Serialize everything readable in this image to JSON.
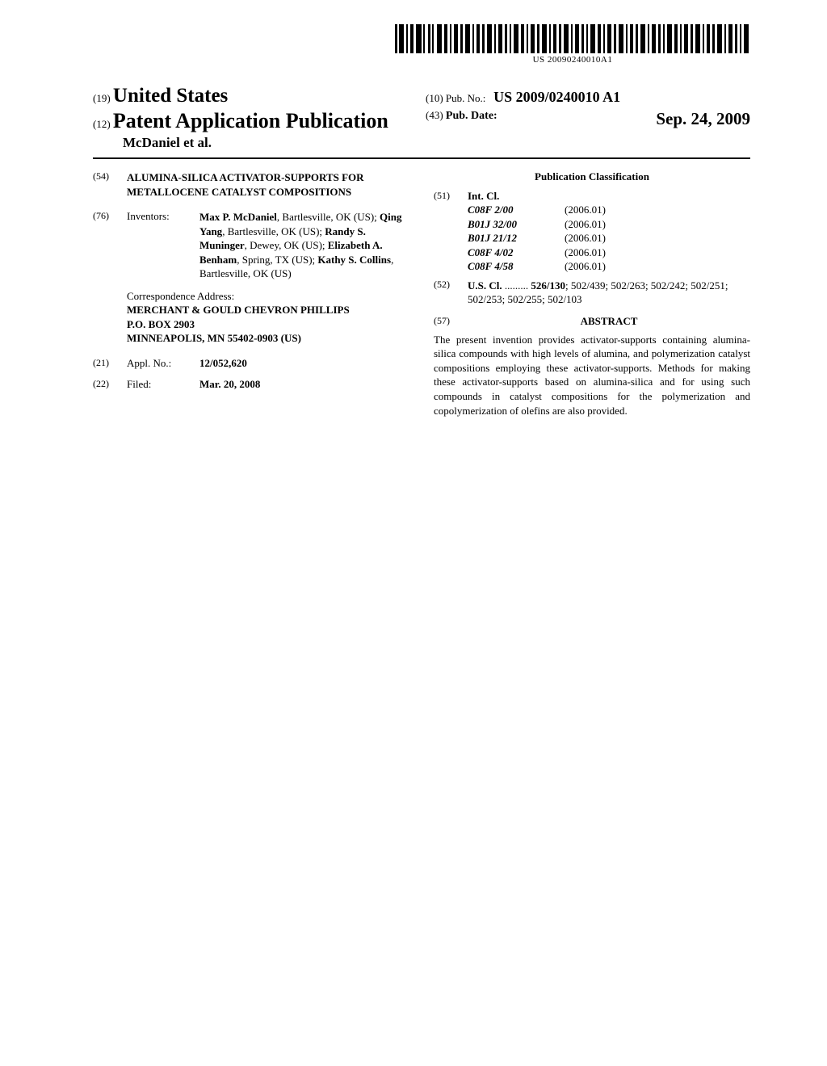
{
  "barcode_number": "US 20090240010A1",
  "header": {
    "code19": "(19)",
    "country": "United States",
    "code12": "(12)",
    "pub_type": "Patent Application Publication",
    "authors": "McDaniel et al.",
    "code10": "(10)",
    "pub_no_label": "Pub. No.:",
    "pub_no": "US 2009/0240010 A1",
    "code43": "(43)",
    "pub_date_label": "Pub. Date:",
    "pub_date": "Sep. 24, 2009"
  },
  "left": {
    "code54": "(54)",
    "title": "ALUMINA-SILICA ACTIVATOR-SUPPORTS FOR METALLOCENE CATALYST COMPOSITIONS",
    "code76": "(76)",
    "inventors_label": "Inventors:",
    "inventors_html": "<b>Max P. McDaniel</b>, Bartlesville, OK (US); <b>Qing Yang</b>, Bartlesville, OK (US); <b>Randy S. Muninger</b>, Dewey, OK (US); <b>Elizabeth A. Benham</b>, Spring, TX (US); <b>Kathy S. Collins</b>, Bartlesville, OK (US)",
    "correspondence_label": "Correspondence Address:",
    "correspondence_line1": "MERCHANT & GOULD CHEVRON PHILLIPS",
    "correspondence_line2": "P.O. BOX 2903",
    "correspondence_line3": "MINNEAPOLIS, MN 55402-0903 (US)",
    "code21": "(21)",
    "appl_label": "Appl. No.:",
    "appl_no": "12/052,620",
    "code22": "(22)",
    "filed_label": "Filed:",
    "filed_date": "Mar. 20, 2008"
  },
  "right": {
    "classification_title": "Publication Classification",
    "code51": "(51)",
    "intcl_label": "Int. Cl.",
    "intcl": [
      {
        "code": "C08F 2/00",
        "year": "(2006.01)"
      },
      {
        "code": "B01J 32/00",
        "year": "(2006.01)"
      },
      {
        "code": "B01J 21/12",
        "year": "(2006.01)"
      },
      {
        "code": "C08F 4/02",
        "year": "(2006.01)"
      },
      {
        "code": "C08F 4/58",
        "year": "(2006.01)"
      }
    ],
    "code52": "(52)",
    "uscl_label": "U.S. Cl.",
    "uscl_dots": " .........",
    "uscl_first": "526/130",
    "uscl_rest": "; 502/439; 502/263; 502/242; 502/251; 502/253; 502/255; 502/103",
    "code57": "(57)",
    "abstract_title": "ABSTRACT",
    "abstract_text": "The present invention provides activator-supports containing alumina-silica compounds with high levels of alumina, and polymerization catalyst compositions employing these activator-supports. Methods for making these activator-supports based on alumina-silica and for using such compounds in catalyst compositions for the polymerization and copolymerization of olefins are also provided."
  }
}
